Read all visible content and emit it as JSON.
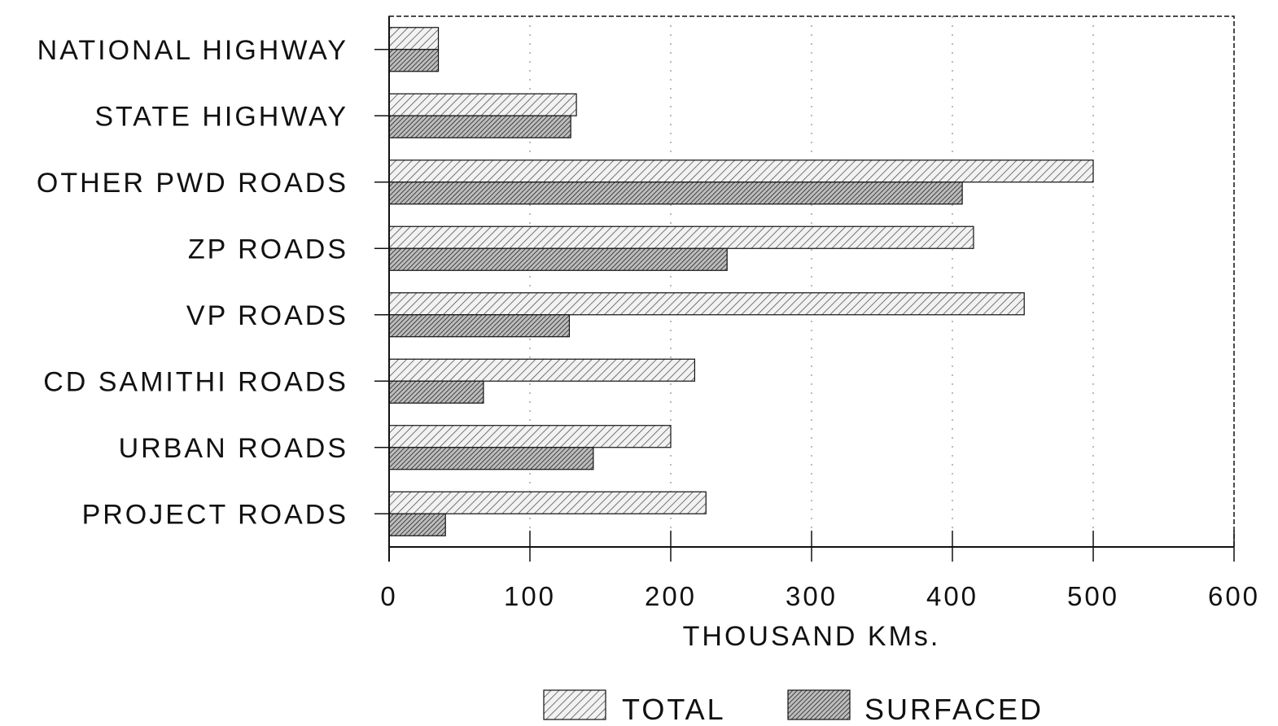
{
  "chart_data": {
    "type": "bar",
    "orientation": "horizontal",
    "categories": [
      "NATIONAL HIGHWAY",
      "STATE HIGHWAY",
      "OTHER PWD ROADS",
      "ZP ROADS",
      "VP ROADS",
      "CD SAMITHI ROADS",
      "URBAN ROADS",
      "PROJECT ROADS"
    ],
    "series": [
      {
        "name": "TOTAL",
        "values": [
          35,
          133,
          500,
          415,
          451,
          217,
          200,
          225
        ],
        "pattern": "light-diagonal-hatch"
      },
      {
        "name": "SURFACED",
        "values": [
          35,
          129,
          407,
          240,
          128,
          67,
          145,
          40
        ],
        "pattern": "dense-cross-hatch"
      }
    ],
    "xlabel": "THOUSAND KMs.",
    "ylabel": "",
    "title": "",
    "xlim": [
      0,
      600
    ],
    "xticks": [
      0,
      100,
      200,
      300,
      400,
      500,
      600
    ],
    "grid": "vertical-dotted",
    "legend_position": "bottom-center"
  },
  "colors": {
    "ink": "#111111",
    "hatch_light": "#555555",
    "hatch_dense": "#222222",
    "background": "#ffffff"
  }
}
